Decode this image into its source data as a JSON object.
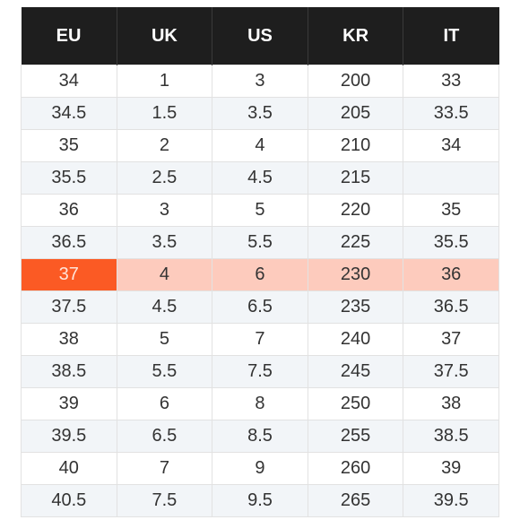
{
  "headers": [
    "EU",
    "UK",
    "US",
    "KR",
    "IT"
  ],
  "highlight_row": 6,
  "colors": {
    "header_bg": "#1e1e1e",
    "highlight_row": "#fdcbbd",
    "highlight_cell": "#fb5a24",
    "stripe": "#f2f5f8"
  },
  "rows": [
    [
      "34",
      "1",
      "3",
      "200",
      "33"
    ],
    [
      "34.5",
      "1.5",
      "3.5",
      "205",
      "33.5"
    ],
    [
      "35",
      "2",
      "4",
      "210",
      "34"
    ],
    [
      "35.5",
      "2.5",
      "4.5",
      "215",
      ""
    ],
    [
      "36",
      "3",
      "5",
      "220",
      "35"
    ],
    [
      "36.5",
      "3.5",
      "5.5",
      "225",
      "35.5"
    ],
    [
      "37",
      "4",
      "6",
      "230",
      "36"
    ],
    [
      "37.5",
      "4.5",
      "6.5",
      "235",
      "36.5"
    ],
    [
      "38",
      "5",
      "7",
      "240",
      "37"
    ],
    [
      "38.5",
      "5.5",
      "7.5",
      "245",
      "37.5"
    ],
    [
      "39",
      "6",
      "8",
      "250",
      "38"
    ],
    [
      "39.5",
      "6.5",
      "8.5",
      "255",
      "38.5"
    ],
    [
      "40",
      "7",
      "9",
      "260",
      "39"
    ],
    [
      "40.5",
      "7.5",
      "9.5",
      "265",
      "39.5"
    ]
  ]
}
